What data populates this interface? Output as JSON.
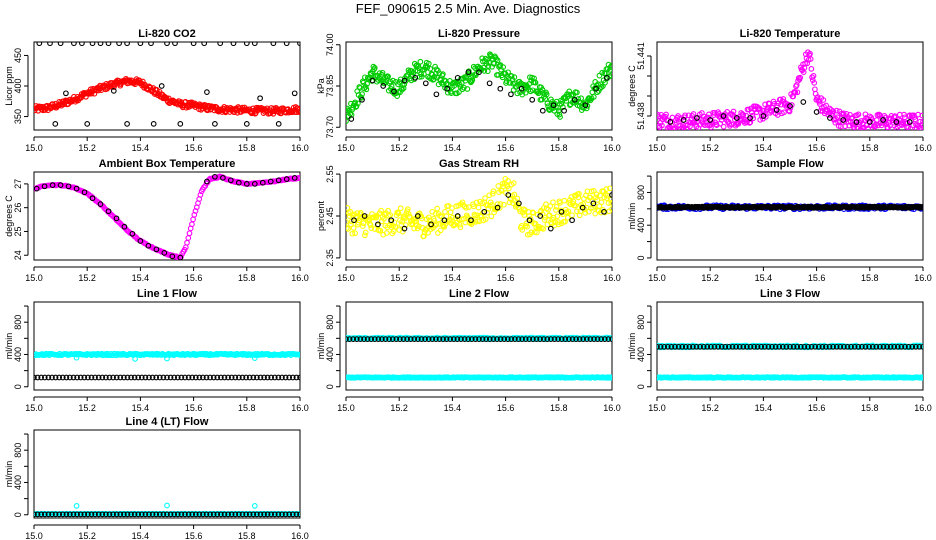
{
  "page": {
    "title": "FEF_090615  2.5 Min. Ave. Diagnostics"
  },
  "chart_data": [
    {
      "type": "scatter",
      "title": "Li-820 CO2",
      "ylabel": "Licor ppm",
      "x_range": [
        15.0,
        16.0
      ],
      "ylim": [
        328,
        472
      ],
      "x_ticks": [
        15.0,
        15.2,
        15.4,
        15.6,
        15.8,
        16.0
      ],
      "x_tick_labels": [
        "15.0",
        "15.2",
        "15.4",
        "15.6",
        "15.8",
        "16.0"
      ],
      "y_ticks": [
        350,
        400,
        450
      ],
      "y_tick_labels": [
        "350",
        "400",
        "450"
      ],
      "series": [
        {
          "color": "#ff0000",
          "kind": "dense",
          "x": [
            15.0,
            15.05,
            15.1,
            15.15,
            15.2,
            15.25,
            15.3,
            15.35,
            15.4,
            15.45,
            15.5,
            15.55,
            15.6,
            15.65,
            15.7,
            15.8,
            15.9,
            16.0
          ],
          "y": [
            362,
            364,
            370,
            378,
            388,
            396,
            403,
            408,
            406,
            392,
            378,
            370,
            368,
            364,
            362,
            360,
            359,
            362
          ],
          "jitter": 5
        },
        {
          "color": "#000000",
          "kind": "points",
          "x": [
            15.02,
            15.06,
            15.1,
            15.15,
            15.18,
            15.22,
            15.25,
            15.28,
            15.32,
            15.35,
            15.4,
            15.44,
            15.5,
            15.53,
            15.6,
            15.64,
            15.7,
            15.75,
            15.8,
            15.83,
            15.9,
            15.95,
            16.0,
            15.08,
            15.2,
            15.35,
            15.45,
            15.55,
            15.68,
            15.8,
            15.92,
            15.12,
            15.3,
            15.48,
            15.65,
            15.85,
            15.98
          ],
          "y": [
            470,
            470,
            470,
            470,
            470,
            470,
            470,
            470,
            470,
            470,
            470,
            470,
            470,
            470,
            470,
            470,
            470,
            470,
            470,
            470,
            470,
            470,
            470,
            338,
            338,
            338,
            338,
            338,
            338,
            338,
            338,
            388,
            392,
            400,
            390,
            380,
            388
          ]
        }
      ]
    },
    {
      "type": "scatter",
      "title": "Li-820 Pressure",
      "ylabel": "kPa",
      "x_range": [
        15.0,
        16.0
      ],
      "ylim": [
        73.69,
        74.01
      ],
      "x_ticks": [
        15.0,
        15.2,
        15.4,
        15.6,
        15.8,
        16.0
      ],
      "x_tick_labels": [
        "15.0",
        "15.2",
        "15.4",
        "15.6",
        "15.8",
        "16.0"
      ],
      "y_ticks": [
        73.7,
        73.85,
        74.0
      ],
      "y_tick_labels": [
        "73.70",
        "73.85",
        "74.00"
      ],
      "series": [
        {
          "color": "#00cc00",
          "kind": "dense",
          "x": [
            15.0,
            15.05,
            15.1,
            15.15,
            15.2,
            15.25,
            15.3,
            15.35,
            15.4,
            15.45,
            15.5,
            15.55,
            15.6,
            15.65,
            15.7,
            15.75,
            15.8,
            15.85,
            15.9,
            15.95,
            16.0
          ],
          "y": [
            73.74,
            73.82,
            73.9,
            73.86,
            73.84,
            73.9,
            73.92,
            73.88,
            73.84,
            73.86,
            73.92,
            73.94,
            73.88,
            73.84,
            73.86,
            73.8,
            73.76,
            73.82,
            73.78,
            73.86,
            73.92
          ],
          "jitter": 0.03
        },
        {
          "color": "#000000",
          "kind": "points",
          "x": [
            15.02,
            15.06,
            15.1,
            15.14,
            15.18,
            15.22,
            15.26,
            15.3,
            15.34,
            15.38,
            15.42,
            15.46,
            15.5,
            15.54,
            15.58,
            15.62,
            15.66,
            15.7,
            15.74,
            15.78,
            15.82,
            15.86,
            15.9,
            15.94,
            15.98
          ],
          "y": [
            73.73,
            73.8,
            73.87,
            73.85,
            73.83,
            73.87,
            73.88,
            73.86,
            73.82,
            73.84,
            73.88,
            73.9,
            73.9,
            73.86,
            73.84,
            73.82,
            73.84,
            73.8,
            73.76,
            73.78,
            73.76,
            73.8,
            73.78,
            73.84,
            73.88
          ]
        }
      ]
    },
    {
      "type": "scatter",
      "title": "Li-820 Temperature",
      "ylabel": "degrees C",
      "x_range": [
        15.0,
        16.0
      ],
      "ylim": [
        51.4373,
        51.4417
      ],
      "x_ticks": [
        15.0,
        15.2,
        15.4,
        15.6,
        15.8,
        16.0
      ],
      "x_tick_labels": [
        "15.0",
        "15.2",
        "15.4",
        "15.6",
        "15.8",
        "16.0"
      ],
      "y_ticks": [
        51.438,
        51.439,
        51.44,
        51.441
      ],
      "y_tick_labels": [
        "51.438",
        "",
        "",
        "51.441"
      ],
      "series": [
        {
          "color": "#ff00ff",
          "kind": "dense",
          "x": [
            15.0,
            15.1,
            15.2,
            15.3,
            15.4,
            15.45,
            15.5,
            15.52,
            15.55,
            15.57,
            15.6,
            15.65,
            15.7,
            15.8,
            15.9,
            16.0
          ],
          "y": [
            51.4378,
            51.4377,
            51.4378,
            51.4379,
            51.4382,
            51.4384,
            51.4386,
            51.4392,
            51.4405,
            51.4412,
            51.4388,
            51.4381,
            51.4378,
            51.4377,
            51.4377,
            51.4377
          ],
          "jitter": 0.0004
        },
        {
          "color": "#000000",
          "kind": "points",
          "x": [
            15.05,
            15.1,
            15.15,
            15.2,
            15.25,
            15.3,
            15.35,
            15.4,
            15.45,
            15.5,
            15.55,
            15.6,
            15.65,
            15.7,
            15.75,
            15.8,
            15.85,
            15.9,
            15.95
          ],
          "y": [
            51.4377,
            51.4378,
            51.4379,
            51.4378,
            51.438,
            51.4379,
            51.4379,
            51.438,
            51.4383,
            51.4385,
            51.4387,
            51.4382,
            51.4379,
            51.4378,
            51.4377,
            51.4377,
            51.4378,
            51.4377,
            51.4377
          ]
        }
      ]
    },
    {
      "type": "scatter",
      "title": "Ambient Box Temperature",
      "ylabel": "degrees C",
      "x_range": [
        15.0,
        16.0
      ],
      "ylim": [
        23.8,
        27.5
      ],
      "x_ticks": [
        15.0,
        15.2,
        15.4,
        15.6,
        15.8,
        16.0
      ],
      "x_tick_labels": [
        "15.0",
        "15.2",
        "15.4",
        "15.6",
        "15.8",
        "16.0"
      ],
      "y_ticks": [
        24,
        25,
        26,
        27
      ],
      "y_tick_labels": [
        "24",
        "25",
        "26",
        "27"
      ],
      "series": [
        {
          "color": "#ff00ff",
          "kind": "curve",
          "x": [
            15.0,
            15.05,
            15.1,
            15.15,
            15.2,
            15.25,
            15.3,
            15.35,
            15.4,
            15.45,
            15.5,
            15.55,
            15.57,
            15.6,
            15.63,
            15.66,
            15.7,
            15.75,
            15.8,
            15.85,
            15.9,
            15.95,
            16.0
          ],
          "y": [
            26.8,
            26.95,
            26.95,
            26.85,
            26.6,
            26.15,
            25.6,
            25.05,
            24.6,
            24.3,
            24.05,
            23.9,
            24.3,
            25.6,
            26.7,
            27.2,
            27.3,
            27.1,
            27.0,
            27.05,
            27.1,
            27.2,
            27.25
          ],
          "jitter": 0.02
        },
        {
          "color": "#000000",
          "kind": "points",
          "x": [
            15.01,
            15.04,
            15.07,
            15.1,
            15.13,
            15.16,
            15.19,
            15.22,
            15.25,
            15.28,
            15.31,
            15.34,
            15.37,
            15.4,
            15.43,
            15.46,
            15.49,
            15.52,
            15.55,
            15.65,
            15.68,
            15.71,
            15.74,
            15.77,
            15.8,
            15.83,
            15.86,
            15.89,
            15.92,
            15.95,
            15.98
          ],
          "y": [
            26.8,
            26.9,
            26.95,
            26.95,
            26.9,
            26.8,
            26.65,
            26.4,
            26.15,
            25.85,
            25.55,
            25.2,
            24.9,
            24.6,
            24.4,
            24.25,
            24.1,
            23.95,
            23.9,
            27.1,
            27.3,
            27.25,
            27.15,
            27.05,
            27.0,
            27.0,
            27.05,
            27.1,
            27.15,
            27.2,
            27.25
          ]
        }
      ]
    },
    {
      "type": "scatter",
      "title": "Gas Stream RH",
      "ylabel": "percent",
      "x_range": [
        15.0,
        16.0
      ],
      "ylim": [
        2.345,
        2.555
      ],
      "x_ticks": [
        15.0,
        15.2,
        15.4,
        15.6,
        15.8,
        16.0
      ],
      "x_tick_labels": [
        "15.0",
        "15.2",
        "15.4",
        "15.6",
        "15.8",
        "16.0"
      ],
      "y_ticks": [
        2.35,
        2.45,
        2.55
      ],
      "y_tick_labels": [
        "2.35",
        "2.45",
        "2.55"
      ],
      "series": [
        {
          "color": "#ffff00",
          "kind": "dense",
          "x": [
            15.0,
            15.1,
            15.2,
            15.3,
            15.4,
            15.5,
            15.55,
            15.6,
            15.63,
            15.66,
            15.7,
            15.75,
            15.8,
            15.85,
            15.9,
            16.0
          ],
          "y": [
            2.44,
            2.43,
            2.44,
            2.43,
            2.45,
            2.46,
            2.48,
            2.51,
            2.5,
            2.44,
            2.43,
            2.45,
            2.46,
            2.47,
            2.48,
            2.49
          ],
          "jitter": 0.03
        },
        {
          "color": "#000000",
          "kind": "points",
          "x": [
            15.03,
            15.07,
            15.12,
            15.17,
            15.22,
            15.27,
            15.32,
            15.37,
            15.42,
            15.47,
            15.52,
            15.57,
            15.61,
            15.65,
            15.69,
            15.73,
            15.77,
            15.81,
            15.85,
            15.89,
            15.93,
            15.97,
            16.0
          ],
          "y": [
            2.44,
            2.45,
            2.43,
            2.44,
            2.42,
            2.45,
            2.43,
            2.44,
            2.45,
            2.44,
            2.46,
            2.47,
            2.5,
            2.48,
            2.44,
            2.45,
            2.42,
            2.46,
            2.44,
            2.47,
            2.48,
            2.46,
            2.5
          ]
        }
      ]
    },
    {
      "type": "scatter",
      "title": "Sample Flow",
      "ylabel": "ml/min",
      "x_range": [
        15.0,
        16.0
      ],
      "ylim": [
        -25,
        1050
      ],
      "x_ticks": [
        15.0,
        15.2,
        15.4,
        15.6,
        15.8,
        16.0
      ],
      "x_tick_labels": [
        "15.0",
        "15.2",
        "15.4",
        "15.6",
        "15.8",
        "16.0"
      ],
      "y_ticks": [
        0,
        200,
        400,
        600,
        800,
        1000
      ],
      "y_tick_labels": [
        "0",
        "",
        "400",
        "",
        "800",
        ""
      ],
      "series": [
        {
          "color": "#0000ff",
          "kind": "band",
          "y": 620,
          "jitter": 25
        },
        {
          "color": "#000000",
          "kind": "band",
          "y": 620,
          "jitter": 8
        }
      ]
    },
    {
      "type": "scatter",
      "title": "Line 1 Flow",
      "ylabel": "ml/min",
      "x_range": [
        15.0,
        16.0
      ],
      "ylim": [
        -40,
        1050
      ],
      "x_ticks": [
        15.0,
        15.2,
        15.4,
        15.6,
        15.8,
        16.0
      ],
      "x_tick_labels": [
        "15.0",
        "15.2",
        "15.4",
        "15.6",
        "15.8",
        "16.0"
      ],
      "y_ticks": [
        0,
        200,
        400,
        600,
        800,
        1000
      ],
      "y_tick_labels": [
        "0",
        "",
        "400",
        "",
        "800",
        ""
      ],
      "series": [
        {
          "color": "#00ffff",
          "kind": "band",
          "y": 400,
          "jitter": 10,
          "outliers": [
            [
              15.16,
              360
            ],
            [
              15.38,
              345
            ],
            [
              15.5,
              350
            ],
            [
              15.83,
              355
            ]
          ]
        },
        {
          "color": "#000000",
          "kind": "points_line",
          "y": 115
        }
      ]
    },
    {
      "type": "scatter",
      "title": "Line 2 Flow",
      "ylabel": "ml/min",
      "x_range": [
        15.0,
        16.0
      ],
      "ylim": [
        -40,
        1050
      ],
      "x_ticks": [
        15.0,
        15.2,
        15.4,
        15.6,
        15.8,
        16.0
      ],
      "x_tick_labels": [
        "15.0",
        "15.2",
        "15.4",
        "15.6",
        "15.8",
        "16.0"
      ],
      "y_ticks": [
        0,
        200,
        400,
        600,
        800,
        1000
      ],
      "y_tick_labels": [
        "0",
        "",
        "400",
        "",
        "800",
        ""
      ],
      "series": [
        {
          "color": "#00ffff",
          "kind": "band",
          "y": 600,
          "jitter": 10
        },
        {
          "color": "#00ffff",
          "kind": "band",
          "y": 115,
          "jitter": 5
        },
        {
          "color": "#000000",
          "kind": "points_line",
          "y": 590
        }
      ]
    },
    {
      "type": "scatter",
      "title": "Line 3 Flow",
      "ylabel": "ml/min",
      "x_range": [
        15.0,
        16.0
      ],
      "ylim": [
        -40,
        1050
      ],
      "x_ticks": [
        15.0,
        15.2,
        15.4,
        15.6,
        15.8,
        16.0
      ],
      "x_tick_labels": [
        "15.0",
        "15.2",
        "15.4",
        "15.6",
        "15.8",
        "16.0"
      ],
      "y_ticks": [
        0,
        200,
        400,
        600,
        800,
        1000
      ],
      "y_tick_labels": [
        "0",
        "",
        "400",
        "",
        "800",
        ""
      ],
      "series": [
        {
          "color": "#00ffff",
          "kind": "band",
          "y": 500,
          "jitter": 12
        },
        {
          "color": "#00ffff",
          "kind": "band",
          "y": 115,
          "jitter": 5
        },
        {
          "color": "#000000",
          "kind": "points_line",
          "y": 495
        }
      ]
    },
    {
      "type": "scatter",
      "title": "Line 4 (LT) Flow",
      "ylabel": "ml/min",
      "x_range": [
        15.0,
        16.0
      ],
      "ylim": [
        -40,
        1050
      ],
      "x_ticks": [
        15.0,
        15.2,
        15.4,
        15.6,
        15.8,
        16.0
      ],
      "x_tick_labels": [
        "15.0",
        "15.2",
        "15.4",
        "15.6",
        "15.8",
        "16.0"
      ],
      "y_ticks": [
        0,
        200,
        400,
        600,
        800,
        1000
      ],
      "y_tick_labels": [
        "0",
        "",
        "400",
        "",
        "800",
        ""
      ],
      "series": [
        {
          "color": "#00ffff",
          "kind": "band",
          "y": 10,
          "jitter": 3,
          "outliers": [
            [
              15.16,
              110
            ],
            [
              15.5,
              115
            ],
            [
              15.83,
              110
            ]
          ]
        },
        {
          "color": "#000000",
          "kind": "points_line",
          "y": 5
        }
      ]
    }
  ]
}
